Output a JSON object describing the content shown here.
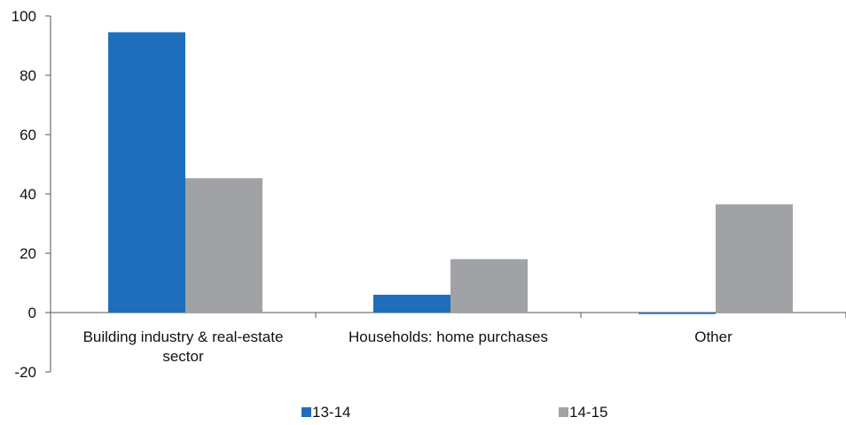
{
  "chart_data": {
    "type": "bar",
    "categories": [
      [
        "Building industry & real-estate",
        "sector"
      ],
      [
        "Households: home purchases"
      ],
      [
        "Other"
      ]
    ],
    "series": [
      {
        "name": "13-14",
        "values": [
          94.5,
          6.0,
          -0.5
        ],
        "color": "#1F6EBB"
      },
      {
        "name": "14-15",
        "values": [
          45.3,
          18.0,
          36.5
        ],
        "color": "#A0A2A5"
      }
    ],
    "ylim": [
      -20,
      100
    ],
    "yticks": [
      -20,
      0,
      20,
      40,
      60,
      80,
      100
    ],
    "ytick_labels": [
      "-20",
      "0",
      "20",
      "40",
      "60",
      "80",
      "100"
    ],
    "grid": false,
    "legend_position": "bottom"
  }
}
